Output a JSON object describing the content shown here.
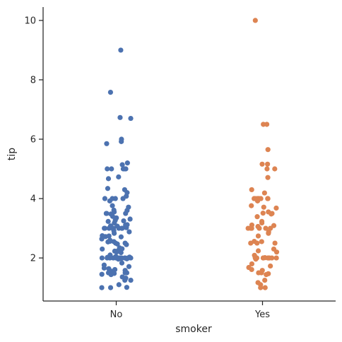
{
  "chart_data": {
    "type": "scatter",
    "title": "",
    "xlabel": "smoker",
    "ylabel": "tip",
    "categories": [
      "No",
      "Yes"
    ],
    "ylim": [
      0.55,
      10.45
    ],
    "yticks": [
      2,
      4,
      6,
      8,
      10
    ],
    "grid": false,
    "legend": "none",
    "series": [
      {
        "category": "No",
        "color": "#4c72b0",
        "values": [
          9.0,
          7.58,
          6.73,
          6.7,
          6.0,
          5.92,
          5.85,
          5.2,
          5.14,
          5.0,
          5.0,
          5.0,
          5.0,
          5.0,
          4.73,
          4.67,
          4.34,
          4.3,
          4.2,
          4.08,
          4.0,
          4.0,
          4.0,
          4.0,
          3.92,
          3.76,
          3.71,
          3.6,
          3.61,
          3.55,
          3.5,
          3.5,
          3.5,
          3.48,
          3.4,
          3.35,
          3.31,
          3.27,
          3.25,
          3.23,
          3.18,
          3.12,
          3.11,
          3.08,
          3.07,
          3.02,
          3.0,
          3.0,
          3.0,
          3.0,
          3.0,
          3.0,
          3.0,
          3.0,
          3.0,
          3.0,
          2.92,
          2.88,
          2.83,
          2.75,
          2.74,
          2.72,
          2.71,
          2.64,
          2.6,
          2.56,
          2.55,
          2.54,
          2.5,
          2.5,
          2.47,
          2.45,
          2.34,
          2.31,
          2.3,
          2.24,
          2.23,
          2.2,
          2.18,
          2.1,
          2.05,
          2.03,
          2.02,
          2.01,
          2.0,
          2.0,
          2.0,
          2.0,
          2.0,
          2.0,
          2.0,
          2.0,
          2.0,
          2.0,
          2.0,
          2.0,
          2.0,
          2.0,
          1.98,
          1.97,
          1.96,
          1.83,
          1.76,
          1.71,
          1.66,
          1.64,
          1.61,
          1.58,
          1.56,
          1.5,
          1.5,
          1.5,
          1.5,
          1.48,
          1.45,
          1.44,
          1.36,
          1.32,
          1.25,
          1.25,
          1.1,
          1.01,
          1.0,
          1.0
        ]
      },
      {
        "category": "Yes",
        "color": "#dd8452",
        "values": [
          10.0,
          6.5,
          6.5,
          5.65,
          5.16,
          5.16,
          5.0,
          5.0,
          4.71,
          4.3,
          4.19,
          4.0,
          4.0,
          4.0,
          4.0,
          4.0,
          4.0,
          4.0,
          4.0,
          3.92,
          3.76,
          3.71,
          3.68,
          3.55,
          3.51,
          3.5,
          3.48,
          3.39,
          3.23,
          3.18,
          3.11,
          3.09,
          3.06,
          3.0,
          3.0,
          3.0,
          3.0,
          3.0,
          3.0,
          3.0,
          3.0,
          2.88,
          2.83,
          2.74,
          2.56,
          2.55,
          2.5,
          2.5,
          2.5,
          2.3,
          2.24,
          2.2,
          2.09,
          2.03,
          2.01,
          2.0,
          2.0,
          2.0,
          2.0,
          2.0,
          2.0,
          2.0,
          2.0,
          2.0,
          2.0,
          2.0,
          1.96,
          1.8,
          1.73,
          1.68,
          1.61,
          1.58,
          1.5,
          1.5,
          1.47,
          1.44,
          1.25,
          1.17,
          1.1,
          1.0,
          1.0
        ]
      }
    ]
  }
}
